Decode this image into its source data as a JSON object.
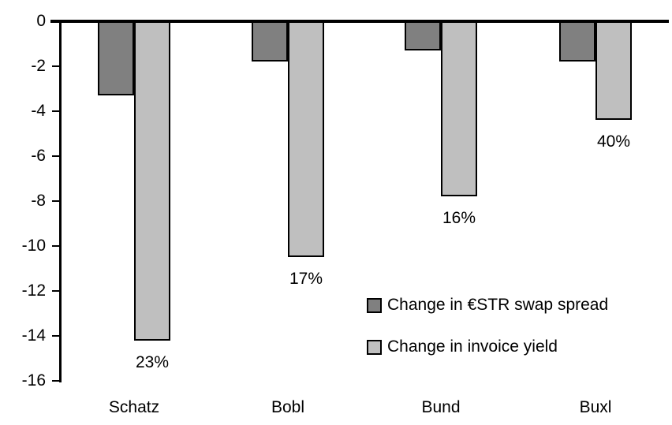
{
  "chart_data": {
    "type": "bar",
    "categories": [
      "Schatz",
      "Bobl",
      "Bund",
      "Buxl"
    ],
    "series": [
      {
        "name": "Change in €STR swap spread",
        "color": "#808080",
        "values": [
          -3.3,
          -1.8,
          -1.3,
          -1.8
        ]
      },
      {
        "name": "Change in invoice yield",
        "color": "#BFBFBF",
        "values": [
          -14.2,
          -10.5,
          -7.8,
          -4.4
        ]
      }
    ],
    "pass_through_labels": [
      "23%",
      "17%",
      "16%",
      "40%"
    ],
    "title": "",
    "xlabel": "",
    "ylabel": "",
    "ylim": [
      -16,
      0
    ],
    "yticks": [
      0,
      -2,
      -4,
      -6,
      -8,
      -10,
      -12,
      -14,
      -16
    ],
    "grid": false,
    "legend_position": "inside-lower-right",
    "axis_color": "#000000",
    "bar_border_color": "#000000",
    "background_color": "#FFFFFF"
  }
}
